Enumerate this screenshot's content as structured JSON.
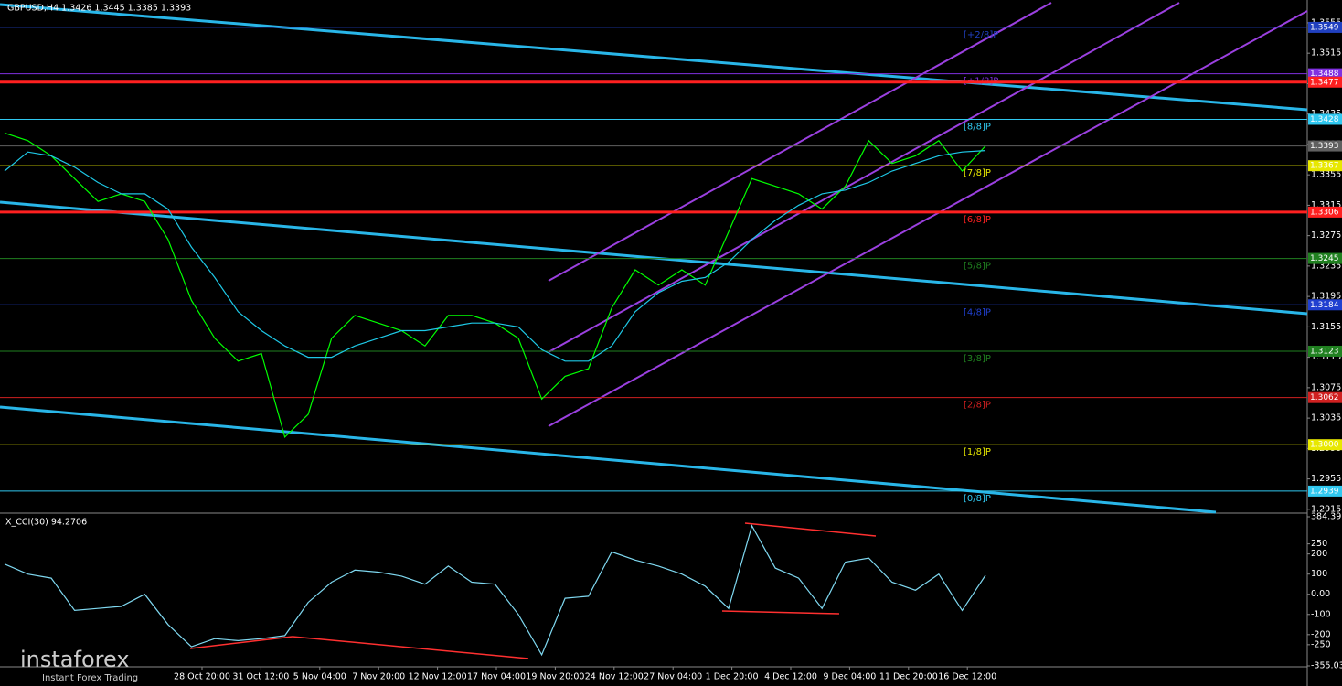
{
  "chart_data": [
    {
      "type": "line",
      "title": "GBPUSD,H4  1.3426 1.3445 1.3385 1.3393",
      "ylim": [
        1.291,
        1.3585
      ],
      "yticks": [
        1.2915,
        1.2955,
        1.2995,
        1.3035,
        1.3075,
        1.3115,
        1.3155,
        1.3195,
        1.3235,
        1.3275,
        1.3315,
        1.3355,
        1.3395,
        1.3435,
        1.3475,
        1.3515,
        1.3555
      ],
      "series": [
        {
          "color": "#00ff00",
          "values": [
            1.341,
            1.34,
            1.338,
            1.335,
            1.332,
            1.333,
            1.332,
            1.327,
            1.319,
            1.314,
            1.311,
            1.312,
            1.301,
            1.304,
            1.314,
            1.317,
            1.316,
            1.315,
            1.313,
            1.317,
            1.317,
            1.316,
            1.314,
            1.306,
            1.309,
            1.31,
            1.318,
            1.323,
            1.321,
            1.323,
            1.321,
            1.328,
            1.335,
            1.334,
            1.333,
            1.331,
            1.334,
            1.34,
            1.337,
            1.338,
            1.34,
            1.336,
            1.3393
          ]
        },
        {
          "color": "#1ec8e6",
          "values": [
            1.336,
            1.3385,
            1.338,
            1.3365,
            1.3345,
            1.333,
            1.333,
            1.331,
            1.326,
            1.322,
            1.3175,
            1.315,
            1.313,
            1.3115,
            1.3115,
            1.313,
            1.314,
            1.315,
            1.315,
            1.3155,
            1.316,
            1.316,
            1.3155,
            1.3125,
            1.311,
            1.311,
            1.313,
            1.3175,
            1.32,
            1.3215,
            1.322,
            1.324,
            1.327,
            1.3295,
            1.3315,
            1.333,
            1.3335,
            1.3345,
            1.336,
            1.337,
            1.338,
            1.3385,
            1.3387
          ]
        }
      ],
      "levels": [
        {
          "value": 1.3549,
          "label": "1.3549",
          "color": "#2040c0",
          "tag": "[+2/8]P"
        },
        {
          "value": 1.3488,
          "label": "1.3488",
          "color": "#8030e0",
          "tag": "[+1/8]P"
        },
        {
          "value": 1.3477,
          "label": "1.3477",
          "color": "#ff2020"
        },
        {
          "value": 1.3428,
          "label": "1.3428",
          "color": "#30c8f0",
          "tag": "[8/8]P"
        },
        {
          "value": 1.3393,
          "label": "1.3393",
          "color": "#606060"
        },
        {
          "value": 1.3367,
          "label": "1.3367",
          "color": "#e8e800",
          "tag": "[7/8]P"
        },
        {
          "value": 1.3306,
          "label": "1.3306",
          "color": "#ff2020",
          "tag": "[6/8]P"
        },
        {
          "value": 1.3245,
          "label": "1.3245",
          "color": "#208020",
          "tag": "[5/8]P"
        },
        {
          "value": 1.3184,
          "label": "1.3184",
          "color": "#2040d0",
          "tag": "[4/8]P"
        },
        {
          "value": 1.3123,
          "label": "1.3123",
          "color": "#208020",
          "tag": "[3/8]P"
        },
        {
          "value": 1.3062,
          "label": "1.3062",
          "color": "#d02020",
          "tag": "[2/8]P"
        },
        {
          "value": 1.3,
          "label": "1.3000",
          "color": "#e8e800",
          "tag": "[1/8]P"
        },
        {
          "value": 1.2939,
          "label": "1.2939",
          "color": "#30c8f0",
          "tag": "[0/8]P"
        }
      ],
      "xtick_labels": [
        "28 Oct 20:00",
        "31 Oct 12:00",
        "5 Nov 04:00",
        "7 Nov 20:00",
        "12 Nov 12:00",
        "17 Nov 04:00",
        "19 Nov 20:00",
        "24 Nov 12:00",
        "27 Nov 04:00",
        "1 Dec 20:00",
        "4 Dec 12:00",
        "9 Dec 04:00",
        "11 Dec 20:00",
        "16 Dec 12:00"
      ]
    },
    {
      "type": "line",
      "title": "X_CCI(30) 94.2706",
      "ylim": [
        -355.0315,
        384.3971
      ],
      "yticks": [
        -355.0315,
        -250,
        -200,
        -100,
        {
          "value": 0,
          "label": "0.00"
        },
        100,
        200,
        250,
        384.3971
      ],
      "series": [
        {
          "color": "#7fd8f0",
          "values": [
            150,
            100,
            80,
            -80,
            -70,
            -60,
            0,
            -150,
            -260,
            -220,
            -230,
            -220,
            -205,
            -40,
            60,
            120,
            110,
            90,
            50,
            140,
            60,
            50,
            -100,
            -300,
            -20,
            -10,
            210,
            170,
            140,
            100,
            40,
            -70,
            340,
            130,
            80,
            -70,
            160,
            180,
            60,
            20,
            100,
            -80,
            94.2706
          ]
        }
      ]
    }
  ],
  "watermark": {
    "brand": "instaforex",
    "slogan": "Instant Forex Trading"
  }
}
